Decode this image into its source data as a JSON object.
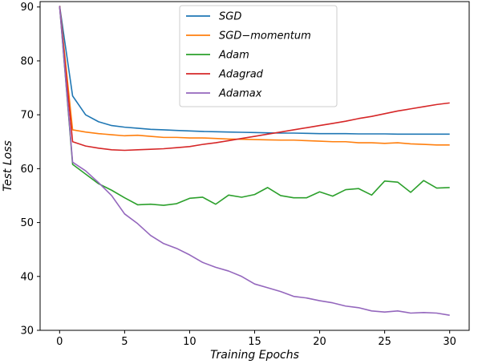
{
  "chart_data": {
    "type": "line",
    "xlabel": "Training Epochs",
    "ylabel": "Test Loss",
    "xlim": [
      -1.5,
      31.5
    ],
    "ylim": [
      30,
      91
    ],
    "xticks": [
      0,
      5,
      10,
      15,
      20,
      25,
      30
    ],
    "yticks": [
      30,
      40,
      50,
      60,
      70,
      80,
      90
    ],
    "grid": false,
    "legend_position": "top-center",
    "x": [
      0,
      1,
      2,
      3,
      4,
      5,
      6,
      7,
      8,
      9,
      10,
      11,
      12,
      13,
      14,
      15,
      16,
      17,
      18,
      19,
      20,
      21,
      22,
      23,
      24,
      25,
      26,
      27,
      28,
      29,
      30
    ],
    "series": [
      {
        "name": "SGD",
        "color": "#1f77b4",
        "values": [
          90.2,
          73.5,
          70.0,
          68.7,
          68.0,
          67.7,
          67.5,
          67.3,
          67.2,
          67.1,
          67.0,
          66.9,
          66.85,
          66.8,
          66.75,
          66.7,
          66.65,
          66.6,
          66.6,
          66.55,
          66.5,
          66.5,
          66.5,
          66.45,
          66.45,
          66.45,
          66.4,
          66.4,
          66.4,
          66.4,
          66.4
        ]
      },
      {
        "name": "SGD−momentum",
        "color": "#ff7f0e",
        "values": [
          90.2,
          67.2,
          66.8,
          66.5,
          66.3,
          66.1,
          66.2,
          66.0,
          65.8,
          65.8,
          65.7,
          65.7,
          65.6,
          65.5,
          65.45,
          65.4,
          65.35,
          65.3,
          65.3,
          65.2,
          65.1,
          65.0,
          65.0,
          64.8,
          64.8,
          64.7,
          64.8,
          64.6,
          64.5,
          64.4,
          64.4
        ]
      },
      {
        "name": "Adam",
        "color": "#2ca02c",
        "values": [
          90.2,
          60.8,
          59.0,
          57.2,
          56.0,
          54.6,
          53.3,
          53.4,
          53.2,
          53.5,
          54.5,
          54.7,
          53.4,
          55.1,
          54.7,
          55.2,
          56.5,
          55.0,
          54.6,
          54.6,
          55.7,
          54.9,
          56.1,
          56.3,
          55.1,
          57.7,
          57.5,
          55.6,
          57.8,
          56.4,
          56.5
        ]
      },
      {
        "name": "Adagrad",
        "color": "#d62728",
        "values": [
          90.2,
          65.0,
          64.2,
          63.8,
          63.5,
          63.4,
          63.5,
          63.6,
          63.7,
          63.9,
          64.1,
          64.5,
          64.8,
          65.2,
          65.6,
          66.0,
          66.4,
          66.8,
          67.2,
          67.6,
          68.0,
          68.4,
          68.8,
          69.3,
          69.7,
          70.2,
          70.7,
          71.1,
          71.5,
          71.9,
          72.2
        ]
      },
      {
        "name": "Adamax",
        "color": "#9467bd",
        "values": [
          90.2,
          61.2,
          59.6,
          57.4,
          55.0,
          51.6,
          49.8,
          47.6,
          46.1,
          45.2,
          44.0,
          42.6,
          41.7,
          41.0,
          40.0,
          38.6,
          37.9,
          37.2,
          36.3,
          36.0,
          35.5,
          35.1,
          34.5,
          34.2,
          33.6,
          33.4,
          33.6,
          33.2,
          33.3,
          33.2,
          32.8
        ]
      }
    ]
  }
}
